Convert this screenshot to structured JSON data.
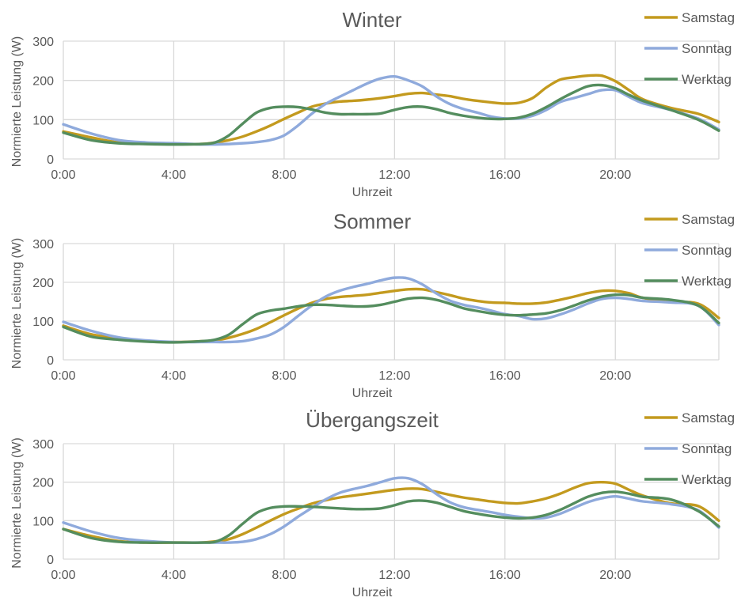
{
  "colors": {
    "Samstag": "#c39a1e",
    "Sonntag": "#8faadc",
    "Werktag": "#548d5e",
    "grid": "#d9d9d9",
    "text": "#595959"
  },
  "chart_data": [
    {
      "type": "line",
      "title": "Winter",
      "xlabel": "Uhrzeit",
      "ylabel": "Normierte Leistung (W)",
      "ylim": [
        0,
        300
      ],
      "yticks": [
        0,
        100,
        200,
        300
      ],
      "xlim": [
        0,
        23.75
      ],
      "xticks": [
        0,
        4,
        8,
        12,
        16,
        20
      ],
      "xtick_labels": [
        "0:00",
        "4:00",
        "8:00",
        "12:00",
        "16:00",
        "20:00"
      ],
      "grid": true,
      "legend": "right",
      "x": [
        0,
        1,
        2,
        3,
        4,
        5,
        5.5,
        6,
        6.5,
        7,
        7.5,
        8,
        8.5,
        9,
        9.5,
        10,
        10.5,
        11,
        11.5,
        12,
        12.5,
        13,
        13.5,
        14,
        14.5,
        15,
        15.5,
        16,
        16.5,
        17,
        17.5,
        18,
        18.5,
        19,
        19.5,
        20,
        20.5,
        21,
        22,
        23,
        23.75
      ],
      "series": [
        {
          "name": "Samstag",
          "values": [
            70,
            55,
            42,
            40,
            38,
            38,
            42,
            48,
            57,
            70,
            85,
            102,
            118,
            133,
            141,
            146,
            148,
            151,
            155,
            160,
            166,
            168,
            164,
            160,
            153,
            148,
            144,
            141,
            143,
            155,
            182,
            202,
            208,
            212,
            212,
            198,
            175,
            152,
            130,
            115,
            94
          ]
        },
        {
          "name": "Sonntag",
          "values": [
            88,
            65,
            48,
            42,
            40,
            37,
            37,
            38,
            40,
            43,
            48,
            60,
            85,
            115,
            140,
            158,
            175,
            192,
            205,
            210,
            200,
            185,
            160,
            140,
            127,
            118,
            108,
            103,
            103,
            110,
            125,
            145,
            155,
            165,
            175,
            175,
            158,
            142,
            125,
            103,
            75
          ]
        },
        {
          "name": "Werktag",
          "values": [
            67,
            48,
            40,
            38,
            37,
            38,
            42,
            60,
            90,
            118,
            130,
            133,
            132,
            126,
            118,
            114,
            114,
            114,
            116,
            125,
            132,
            133,
            127,
            117,
            110,
            105,
            102,
            102,
            105,
            115,
            132,
            152,
            170,
            185,
            188,
            180,
            163,
            148,
            125,
            100,
            72
          ]
        }
      ]
    },
    {
      "type": "line",
      "title": "Sommer",
      "xlabel": "Uhrzeit",
      "ylabel": "Normierte Leistung (W)",
      "ylim": [
        0,
        300
      ],
      "yticks": [
        0,
        100,
        200,
        300
      ],
      "xlim": [
        0,
        23.75
      ],
      "xticks": [
        0,
        4,
        8,
        12,
        16,
        20
      ],
      "xtick_labels": [
        "0:00",
        "4:00",
        "8:00",
        "12:00",
        "16:00",
        "20:00"
      ],
      "grid": true,
      "legend": "right",
      "x": [
        0,
        1,
        2,
        3,
        4,
        5,
        5.5,
        6,
        6.5,
        7,
        7.5,
        8,
        8.5,
        9,
        9.5,
        10,
        10.5,
        11,
        11.5,
        12,
        12.5,
        13,
        13.5,
        14,
        14.5,
        15,
        15.5,
        16,
        16.5,
        17,
        17.5,
        18,
        18.5,
        19,
        19.5,
        20,
        20.5,
        21,
        22,
        23,
        23.75
      ],
      "series": [
        {
          "name": "Samstag",
          "values": [
            88,
            66,
            55,
            48,
            46,
            48,
            50,
            57,
            67,
            80,
            97,
            115,
            132,
            147,
            157,
            162,
            165,
            168,
            173,
            178,
            182,
            182,
            175,
            167,
            158,
            152,
            148,
            147,
            145,
            145,
            148,
            155,
            163,
            172,
            178,
            178,
            172,
            160,
            150,
            145,
            108
          ]
        },
        {
          "name": "Sonntag",
          "values": [
            98,
            75,
            58,
            50,
            46,
            46,
            46,
            46,
            48,
            55,
            65,
            85,
            113,
            140,
            163,
            178,
            188,
            196,
            205,
            212,
            210,
            195,
            172,
            153,
            142,
            135,
            127,
            118,
            113,
            105,
            107,
            117,
            130,
            145,
            157,
            160,
            157,
            152,
            148,
            140,
            90
          ]
        },
        {
          "name": "Werktag",
          "values": [
            85,
            60,
            52,
            47,
            45,
            48,
            52,
            65,
            92,
            117,
            127,
            132,
            138,
            142,
            142,
            140,
            138,
            138,
            142,
            150,
            158,
            160,
            155,
            145,
            133,
            126,
            120,
            116,
            115,
            117,
            120,
            128,
            140,
            153,
            163,
            168,
            167,
            160,
            155,
            140,
            95
          ]
        }
      ]
    },
    {
      "type": "line",
      "title": "Übergangszeit",
      "xlabel": "Uhrzeit",
      "ylabel": "Normierte Leistung (W)",
      "ylim": [
        0,
        300
      ],
      "yticks": [
        0,
        100,
        200,
        300
      ],
      "xlim": [
        0,
        23.75
      ],
      "xticks": [
        0,
        4,
        8,
        12,
        16,
        20
      ],
      "xtick_labels": [
        "0:00",
        "4:00",
        "8:00",
        "12:00",
        "16:00",
        "20:00"
      ],
      "grid": true,
      "legend": "right",
      "x": [
        0,
        1,
        2,
        3,
        4,
        5,
        5.5,
        6,
        6.5,
        7,
        7.5,
        8,
        8.5,
        9,
        9.5,
        10,
        10.5,
        11,
        11.5,
        12,
        12.5,
        13,
        13.5,
        14,
        14.5,
        15,
        15.5,
        16,
        16.5,
        17,
        17.5,
        18,
        18.5,
        19,
        19.5,
        20,
        20.5,
        21,
        22,
        23,
        23.75
      ],
      "series": [
        {
          "name": "Samstag",
          "values": [
            78,
            60,
            47,
            43,
            43,
            43,
            46,
            52,
            65,
            82,
            100,
            117,
            131,
            144,
            153,
            160,
            165,
            170,
            175,
            180,
            183,
            182,
            175,
            167,
            160,
            155,
            150,
            146,
            145,
            150,
            158,
            170,
            185,
            197,
            200,
            196,
            180,
            165,
            145,
            138,
            100
          ]
        },
        {
          "name": "Sonntag",
          "values": [
            95,
            72,
            55,
            47,
            43,
            43,
            43,
            43,
            45,
            52,
            65,
            85,
            110,
            133,
            155,
            172,
            182,
            190,
            200,
            210,
            210,
            195,
            170,
            148,
            135,
            128,
            122,
            115,
            110,
            106,
            108,
            118,
            133,
            148,
            158,
            163,
            157,
            150,
            143,
            127,
            82
          ]
        },
        {
          "name": "Werktag",
          "values": [
            78,
            55,
            45,
            43,
            43,
            43,
            45,
            62,
            92,
            120,
            133,
            137,
            137,
            136,
            134,
            132,
            130,
            130,
            132,
            140,
            150,
            152,
            147,
            136,
            125,
            118,
            112,
            108,
            106,
            108,
            115,
            128,
            145,
            162,
            172,
            175,
            170,
            162,
            155,
            125,
            85
          ]
        }
      ]
    }
  ]
}
